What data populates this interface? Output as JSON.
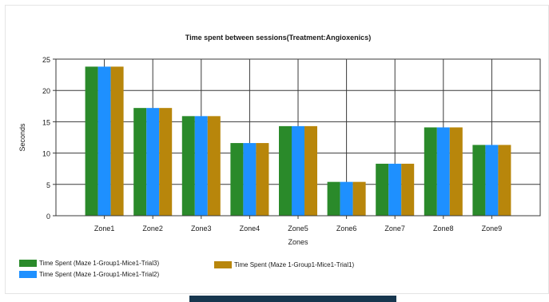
{
  "chart_data": {
    "type": "bar",
    "title": "Time spent between sessions(Treatment:Angioxenics)",
    "xlabel": "Zones",
    "ylabel": "Seconds",
    "categories": [
      "Zone1",
      "Zone2",
      "Zone3",
      "Zone4",
      "Zone5",
      "Zone6",
      "Zone7",
      "Zone8",
      "Zone9"
    ],
    "ylim": [
      0,
      25
    ],
    "yticks": [
      0,
      5,
      10,
      15,
      20,
      25
    ],
    "grid": true,
    "legend_position": "bottom-left",
    "series": [
      {
        "name": "Time Spent (Maze 1-Group1-Mice1-Trial3)",
        "color": "#2a8a2a",
        "values": [
          23.8,
          17.2,
          15.9,
          11.6,
          14.3,
          5.4,
          8.3,
          14.1,
          11.3
        ]
      },
      {
        "name": "Time Spent (Maze 1-Group1-Mice1-Trial2)",
        "color": "#1e90ff",
        "values": [
          23.8,
          17.2,
          15.9,
          11.6,
          14.3,
          5.4,
          8.3,
          14.1,
          11.3
        ]
      },
      {
        "name": "Time Spent (Maze 1-Group1-Mice1-Trial1)",
        "color": "#b8860b",
        "values": [
          23.8,
          17.2,
          15.9,
          11.6,
          14.3,
          5.4,
          8.3,
          14.1,
          11.3
        ]
      }
    ]
  }
}
